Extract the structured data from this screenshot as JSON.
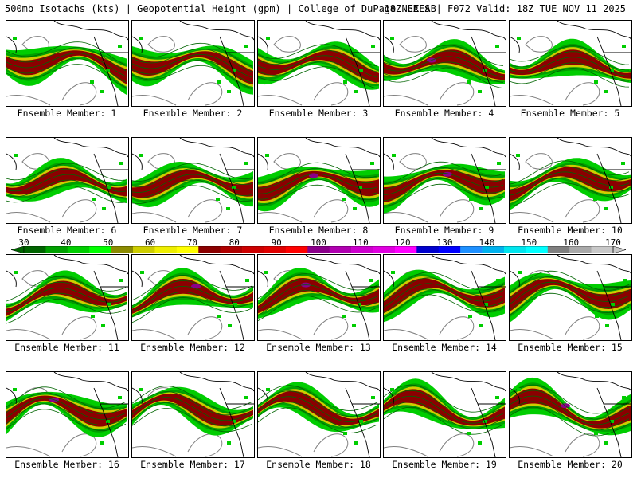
{
  "header": {
    "left": "500mb Isotachs (kts) | Geopotential Height (gpm) | College of DuPage NEXLAB",
    "right": "18Z GEFS | F072 Valid: 18Z TUE NOV 11 2025"
  },
  "members": [
    "Ensemble Member: 1",
    "Ensemble Member: 2",
    "Ensemble Member: 3",
    "Ensemble Member: 4",
    "Ensemble Member: 5",
    "Ensemble Member: 6",
    "Ensemble Member: 7",
    "Ensemble Member: 8",
    "Ensemble Member: 9",
    "Ensemble Member: 10",
    "Ensemble Member: 11",
    "Ensemble Member: 12",
    "Ensemble Member: 13",
    "Ensemble Member: 14",
    "Ensemble Member: 15",
    "Ensemble Member: 16",
    "Ensemble Member: 17",
    "Ensemble Member: 18",
    "Ensemble Member: 19",
    "Ensemble Member: 20"
  ],
  "colorbar": {
    "labels": [
      "30",
      "40",
      "50",
      "60",
      "70",
      "80",
      "90",
      "100",
      "110",
      "120",
      "130",
      "140",
      "150",
      "160",
      "170"
    ],
    "colors": [
      "#006400",
      "#00a000",
      "#00cd00",
      "#00ff00",
      "#8b8b00",
      "#cdcd00",
      "#eeee00",
      "#ffff00",
      "#8b0000",
      "#b00000",
      "#cd0000",
      "#e00000",
      "#ff0000",
      "#8b008b",
      "#b000b0",
      "#cd00cd",
      "#e000e0",
      "#ff00ff",
      "#0000cd",
      "#0000ff",
      "#1e90ff",
      "#00b2ee",
      "#00e5ee",
      "#00ffff",
      "#7f7f7f",
      "#a9a9a9",
      "#c8c8c8"
    ]
  },
  "colors": {
    "background": "#ffffff",
    "coast": "#000000",
    "height_contour": "#808080"
  }
}
